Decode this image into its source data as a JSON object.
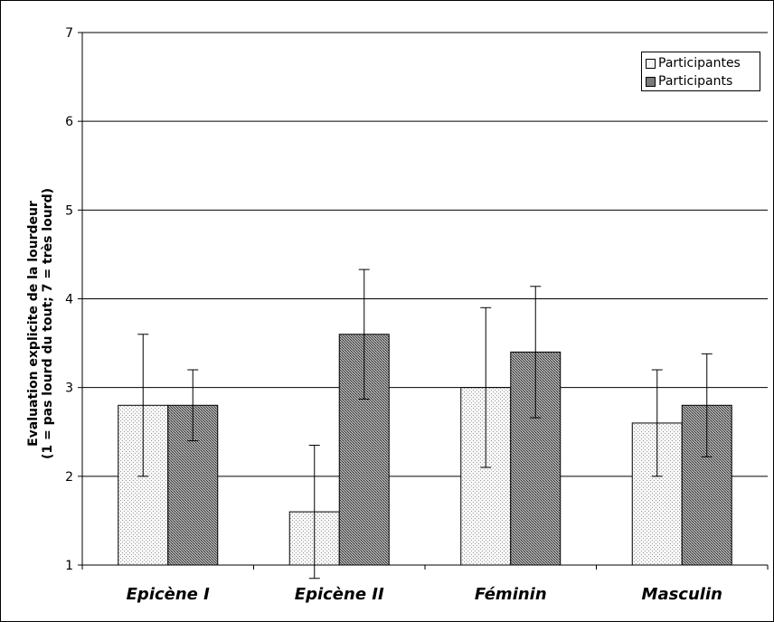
{
  "chart_data": {
    "type": "bar",
    "categories": [
      "Epicène I",
      "Epicène II",
      "Féminin",
      "Masculin"
    ],
    "ylabel_line1": "Evaluation explicite de la lourdeur",
    "ylabel_line2": "(1 = pas lourd du tout; 7 = très lourd)",
    "ylim": [
      1,
      7
    ],
    "yticks": [
      1,
      2,
      3,
      4,
      5,
      6,
      7
    ],
    "grid": true,
    "legend_position": "top-right",
    "series": [
      {
        "name": "Participantes",
        "values": [
          2.8,
          1.6,
          3.0,
          2.6
        ],
        "error_low": [
          2.0,
          0.85,
          2.1,
          2.0
        ],
        "error_high": [
          3.6,
          2.35,
          3.9,
          3.2
        ],
        "color": "#f2f2f2",
        "pattern": "fine-dots"
      },
      {
        "name": "Participants",
        "values": [
          2.8,
          3.6,
          3.4,
          2.8
        ],
        "error_low": [
          2.4,
          2.87,
          2.66,
          2.22
        ],
        "error_high": [
          3.2,
          4.33,
          4.14,
          3.38
        ],
        "color": "#8c8c8c",
        "pattern": "dense-dots"
      }
    ]
  }
}
